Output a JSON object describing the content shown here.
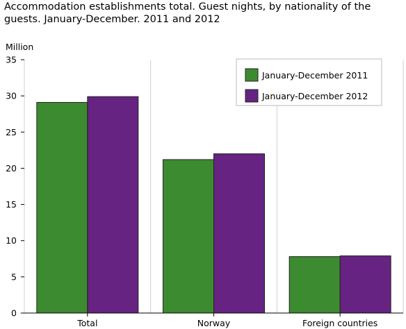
{
  "chart_data": {
    "type": "bar",
    "title": "Accommodation establishments total. Guest nights, by nationality of the guests. January-December. 2011 and 2012",
    "ylabel": "Million",
    "xlabel": "",
    "categories": [
      "Total",
      "Norway",
      "Foreign countries"
    ],
    "series": [
      {
        "name": "January-December 2011",
        "color": "#3d8b30",
        "values": [
          29.1,
          21.2,
          7.8
        ]
      },
      {
        "name": "January-December 2012",
        "color": "#662382",
        "values": [
          29.9,
          22.0,
          7.9
        ]
      }
    ],
    "ylim": [
      0,
      35
    ],
    "yticks": [
      0,
      5,
      10,
      15,
      20,
      25,
      30,
      35
    ],
    "grid": "vertical",
    "legend": "top-right"
  }
}
